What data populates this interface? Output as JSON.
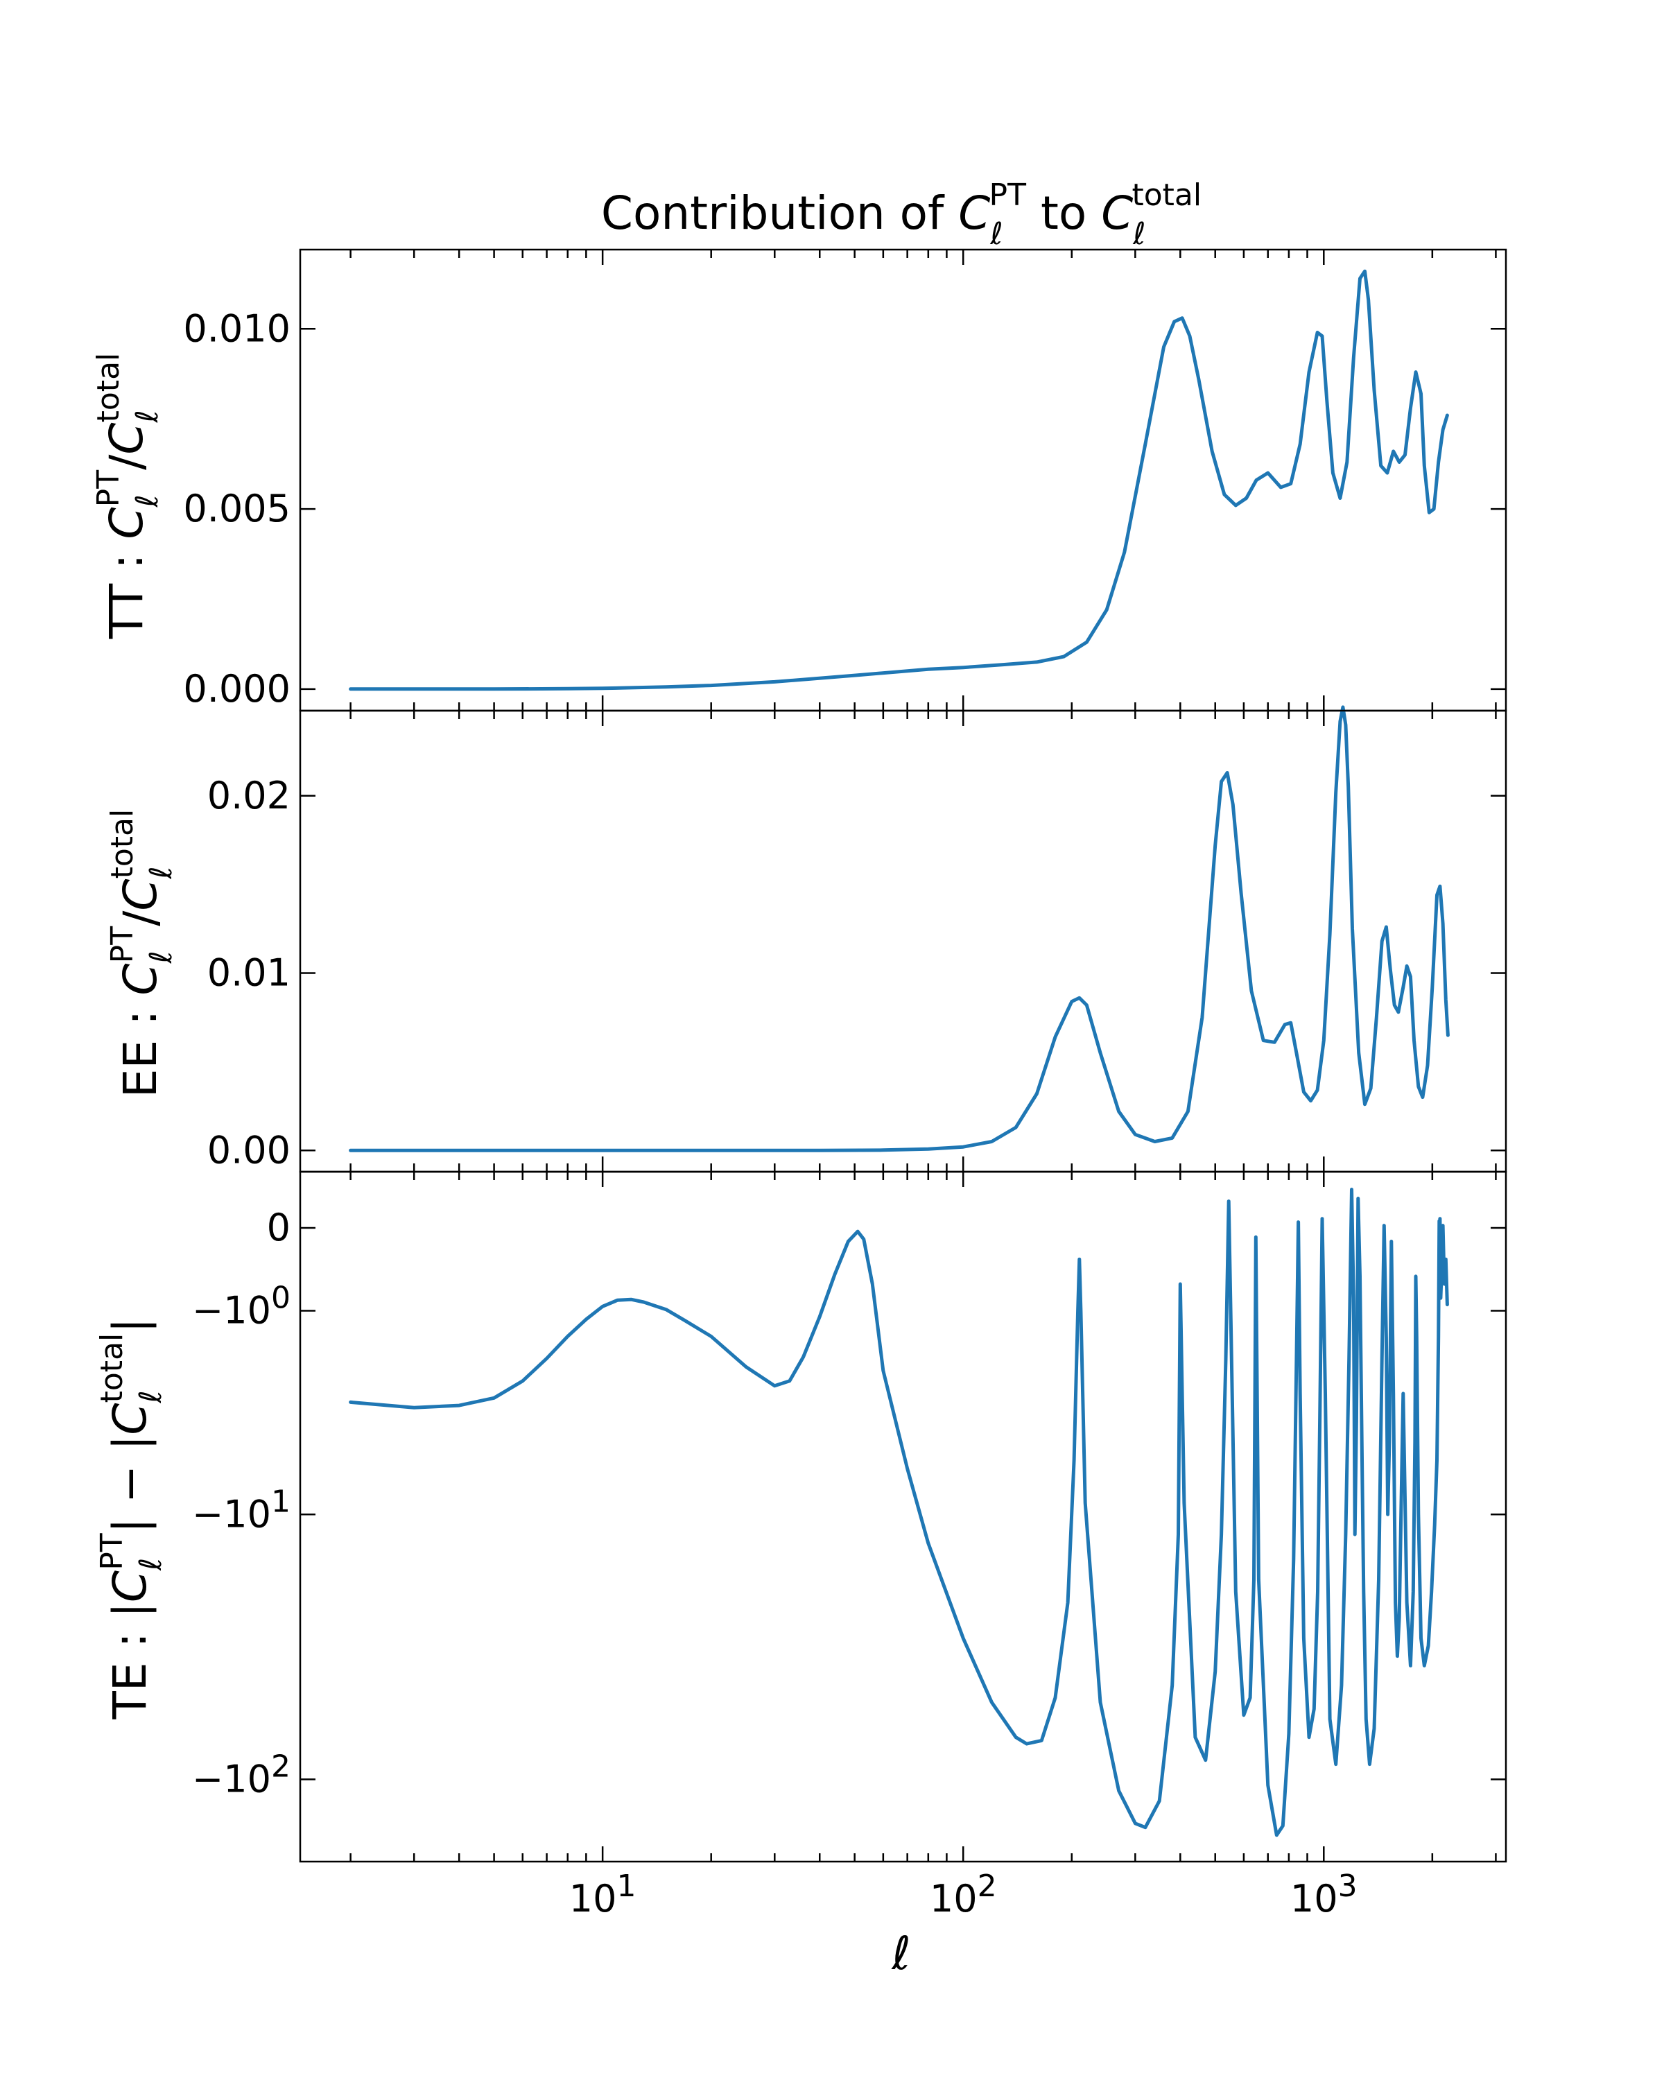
{
  "figure": {
    "title": {
      "prefix": "Contribution of ",
      "C1": "C",
      "C1_sub": "ℓ",
      "C1_sup": "PT",
      "middle": " to ",
      "C2": "C",
      "C2_sub": "ℓ",
      "C2_sup": "total"
    },
    "xlabel": "ℓ",
    "line_color": "#1f77b4"
  },
  "chart_data": [
    {
      "type": "line",
      "panel": "TT",
      "ylabel": {
        "prefix": "TT : ",
        "C": "C",
        "sub": "ℓ",
        "sup1": "PT",
        "slash": "/",
        "sup2": "total"
      },
      "xscale": "log",
      "xlim": [
        1.45,
        3200
      ],
      "ylim": [
        -0.0006,
        0.0122
      ],
      "yticks": [
        0.0,
        0.005,
        0.01
      ],
      "ytick_labels": [
        "0.000",
        "0.005",
        "0.010"
      ],
      "series": [
        {
          "x": [
            2,
            3,
            5,
            8,
            10,
            15,
            20,
            30,
            50,
            80,
            100,
            130,
            160,
            190,
            220,
            250,
            280,
            320,
            360,
            385,
            405,
            425,
            450,
            490,
            530,
            570,
            610,
            650,
            700,
            760,
            810,
            860,
            910,
            960,
            990,
            1020,
            1060,
            1110,
            1160,
            1210,
            1260,
            1300,
            1330,
            1380,
            1440,
            1500,
            1560,
            1620,
            1680,
            1740,
            1800,
            1860,
            1900,
            1960,
            2020,
            2080,
            2140,
            2200
          ],
          "y": [
            0.0,
            0.0,
            0.0,
            1e-05,
            2e-05,
            6e-05,
            0.0001,
            0.0002,
            0.00038,
            0.00055,
            0.0006,
            0.00068,
            0.00075,
            0.0009,
            0.0013,
            0.0022,
            0.0038,
            0.0068,
            0.0095,
            0.0102,
            0.0103,
            0.0098,
            0.0086,
            0.0066,
            0.0054,
            0.0051,
            0.0053,
            0.0058,
            0.006,
            0.0056,
            0.0057,
            0.0068,
            0.0088,
            0.0099,
            0.0098,
            0.008,
            0.006,
            0.0053,
            0.0063,
            0.0092,
            0.0114,
            0.0116,
            0.0108,
            0.0083,
            0.0062,
            0.006,
            0.0066,
            0.0063,
            0.0065,
            0.0078,
            0.0088,
            0.0082,
            0.0062,
            0.0049,
            0.005,
            0.0063,
            0.0072,
            0.0076
          ]
        }
      ]
    },
    {
      "type": "line",
      "panel": "EE",
      "ylabel": {
        "prefix": "EE : ",
        "C": "C",
        "sub": "ℓ",
        "sup1": "PT",
        "slash": "/",
        "sup2": "total"
      },
      "xscale": "log",
      "xlim": [
        1.45,
        3200
      ],
      "ylim": [
        -0.0012,
        0.0248
      ],
      "yticks": [
        0.0,
        0.01,
        0.02
      ],
      "ytick_labels": [
        "0.00",
        "0.01",
        "0.02"
      ],
      "series": [
        {
          "x": [
            2,
            5,
            10,
            20,
            40,
            60,
            80,
            100,
            120,
            140,
            160,
            180,
            200,
            210,
            220,
            240,
            270,
            300,
            340,
            380,
            420,
            460,
            500,
            520,
            540,
            560,
            590,
            630,
            680,
            730,
            780,
            810,
            840,
            880,
            920,
            960,
            1000,
            1040,
            1080,
            1110,
            1130,
            1150,
            1170,
            1200,
            1250,
            1300,
            1350,
            1400,
            1450,
            1490,
            1530,
            1570,
            1610,
            1660,
            1700,
            1740,
            1780,
            1830,
            1880,
            1940,
            2000,
            2060,
            2100,
            2140,
            2180,
            2210
          ],
          "y": [
            0.0,
            0.0,
            0.0,
            0.0,
            0.0,
            2e-05,
            8e-05,
            0.0002,
            0.0005,
            0.0013,
            0.0032,
            0.0064,
            0.0084,
            0.0086,
            0.0082,
            0.0055,
            0.0022,
            0.0009,
            0.0005,
            0.0007,
            0.0022,
            0.0075,
            0.0172,
            0.0208,
            0.0213,
            0.0195,
            0.0145,
            0.009,
            0.0062,
            0.0061,
            0.0071,
            0.0072,
            0.0055,
            0.0033,
            0.0028,
            0.0034,
            0.0062,
            0.0122,
            0.0202,
            0.0242,
            0.025,
            0.024,
            0.0205,
            0.0125,
            0.0055,
            0.0026,
            0.0035,
            0.0075,
            0.0118,
            0.0126,
            0.0102,
            0.0082,
            0.0078,
            0.0092,
            0.0104,
            0.0098,
            0.0062,
            0.0036,
            0.003,
            0.0048,
            0.0092,
            0.0144,
            0.0149,
            0.0128,
            0.0085,
            0.0065
          ]
        }
      ]
    },
    {
      "type": "line",
      "panel": "TE",
      "ylabel": {
        "prefix": "TE : |",
        "C1": "C",
        "sub1": "ℓ",
        "sup1": "PT",
        "middle": "| − |",
        "C2": "C",
        "sub2": "ℓ",
        "sup2": "total",
        "suffix": "|"
      },
      "xscale": "log",
      "yscale": "symlog",
      "ylim": [
        -200,
        0.6
      ],
      "yticks": [
        0,
        -1,
        -10,
        -100
      ],
      "ytick_labels": [
        {
          "base": "0",
          "exp": ""
        },
        {
          "base": "−10",
          "exp": "0"
        },
        {
          "base": "−10",
          "exp": "1"
        },
        {
          "base": "−10",
          "exp": "2"
        }
      ],
      "series": [
        {
          "x": [
            2,
            3,
            4,
            5,
            6,
            7,
            8,
            9,
            10,
            11,
            12,
            13,
            15,
            17,
            20,
            25,
            30,
            33,
            36,
            40,
            44,
            48,
            51,
            53,
            56,
            60,
            70,
            80,
            100,
            120,
            140,
            150,
            165,
            180,
            195,
            203,
            208,
            210,
            212,
            218,
            240,
            270,
            300,
            320,
            350,
            380,
            395,
            400,
            410,
            440,
            470,
            500,
            520,
            535,
            545,
            555,
            570,
            600,
            625,
            640,
            648,
            660,
            700,
            740,
            770,
            800,
            825,
            840,
            850,
            860,
            880,
            910,
            940,
            962,
            975,
            990,
            1010,
            1040,
            1080,
            1120,
            1150,
            1175,
            1195,
            1210,
            1220,
            1232,
            1245,
            1260,
            1275,
            1290,
            1310,
            1340,
            1380,
            1420,
            1450,
            1470,
            1490,
            1505,
            1520,
            1540,
            1560,
            1580,
            1600,
            1620,
            1640,
            1660,
            1700,
            1740,
            1770,
            1790,
            1800,
            1810,
            1830,
            1860,
            1900,
            1950,
            1990,
            2030,
            2060,
            2080,
            2090,
            2095,
            2100,
            2110,
            2125,
            2140,
            2160,
            2180,
            2200
          ],
          "y": [
            -3.3,
            -3.5,
            -3.42,
            -3.15,
            -2.6,
            -1.98,
            -1.48,
            -1.15,
            -0.93,
            -0.83,
            -0.82,
            -0.86,
            -0.98,
            -1.18,
            -1.48,
            -2.2,
            -2.75,
            -2.6,
            -1.95,
            -1.1,
            -0.48,
            -0.12,
            -0.03,
            -0.1,
            -0.6,
            -2.3,
            -6.5,
            -13,
            -30,
            -52,
            -70,
            -74,
            -72,
            -50,
            -22,
            -6,
            -1,
            -0.3,
            -1,
            -9,
            -52,
            -110,
            -145,
            -150,
            -120,
            -45,
            -12,
            -0.6,
            -9,
            -70,
            -85,
            -40,
            -12,
            -2,
            0.25,
            -2,
            -20,
            -58,
            -50,
            -18,
            -0.08,
            -18,
            -105,
            -160,
            -148,
            -68,
            -15,
            -2,
            0.05,
            -3,
            -30,
            -70,
            -55,
            -20,
            -4,
            0.08,
            -3,
            -60,
            -88,
            -45,
            -12,
            -2,
            0.38,
            -0.8,
            -12,
            -4,
            0.28,
            -0.5,
            -5,
            -20,
            -60,
            -88,
            -65,
            -18,
            -2,
            0.02,
            -1.5,
            -10,
            -5,
            -0.12,
            -3,
            -22,
            -35,
            -25,
            -9,
            -3,
            -22,
            -38,
            -20,
            -5,
            -0.5,
            -1.5,
            -10,
            -30,
            -38,
            -32,
            -20,
            -11,
            -6,
            -1.5,
            0.06,
            -0.5,
            0.08,
            -0.8,
            -0.4,
            0.02,
            -0.6,
            -0.3,
            -0.9
          ]
        }
      ]
    }
  ]
}
